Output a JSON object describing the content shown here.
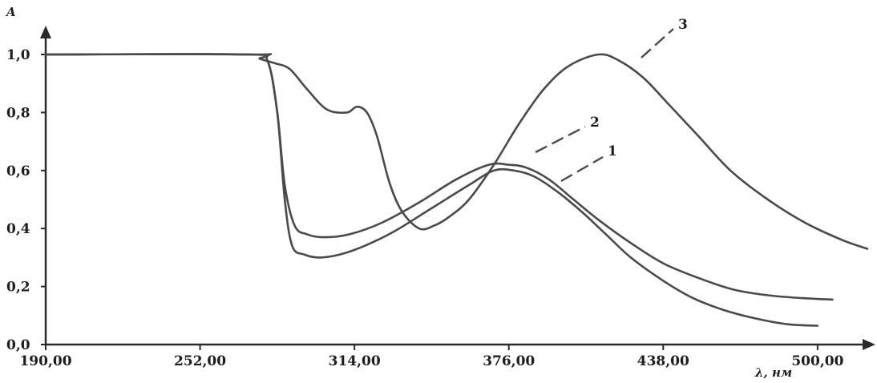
{
  "chart_data": {
    "type": "line",
    "ylabel": "A",
    "xlabel": "λ, нм",
    "xlim": [
      190,
      520
    ],
    "ylim": [
      0,
      1.0
    ],
    "x_ticks": [
      190,
      252,
      314,
      376,
      438,
      500
    ],
    "x_tick_labels": [
      "190,00",
      "252,00",
      "314,00",
      "376,00",
      "438,00",
      "500,00"
    ],
    "y_ticks": [
      0,
      0.2,
      0.4,
      0.6,
      0.8,
      1.0
    ],
    "y_tick_labels": [
      "0,0",
      "0,2",
      "0,4",
      "0,6",
      "0,8",
      "1,0"
    ],
    "grid": false,
    "legend": "none",
    "series": [
      {
        "name": "1",
        "label_text": "1",
        "x": [
          190,
          272,
          279,
          283,
          286,
          289,
          294,
          300,
          308,
          318,
          330,
          345,
          360,
          370,
          378,
          386,
          395,
          405,
          415,
          425,
          438,
          450,
          462,
          475,
          488,
          500
        ],
        "y": [
          1.0,
          1.0,
          0.98,
          0.8,
          0.5,
          0.34,
          0.31,
          0.3,
          0.31,
          0.34,
          0.39,
          0.47,
          0.55,
          0.6,
          0.6,
          0.58,
          0.53,
          0.46,
          0.38,
          0.3,
          0.22,
          0.16,
          0.12,
          0.09,
          0.07,
          0.065
        ]
      },
      {
        "name": "2",
        "label_text": "2",
        "x": [
          190,
          272,
          279,
          283,
          286,
          290,
          295,
          302,
          312,
          325,
          340,
          355,
          368,
          376,
          383,
          392,
          402,
          412,
          425,
          438,
          452,
          466,
          480,
          494,
          506
        ],
        "y": [
          1.0,
          1.0,
          0.98,
          0.8,
          0.55,
          0.41,
          0.38,
          0.37,
          0.38,
          0.42,
          0.49,
          0.57,
          0.62,
          0.62,
          0.61,
          0.57,
          0.5,
          0.43,
          0.35,
          0.28,
          0.23,
          0.19,
          0.17,
          0.16,
          0.155
        ]
      },
      {
        "name": "3",
        "label_text": "3",
        "x": [
          190,
          272,
          276,
          282,
          288,
          295,
          303,
          311,
          315,
          319,
          323,
          328,
          333,
          340,
          346,
          352,
          360,
          370,
          380,
          390,
          400,
          412,
          420,
          430,
          440,
          452,
          465,
          480,
          495,
          510,
          520
        ],
        "y": [
          1.0,
          1.0,
          0.985,
          0.97,
          0.95,
          0.88,
          0.81,
          0.8,
          0.82,
          0.8,
          0.72,
          0.56,
          0.46,
          0.4,
          0.41,
          0.44,
          0.5,
          0.62,
          0.76,
          0.88,
          0.96,
          1.0,
          0.98,
          0.92,
          0.83,
          0.72,
          0.6,
          0.5,
          0.42,
          0.36,
          0.33
        ]
      }
    ]
  }
}
